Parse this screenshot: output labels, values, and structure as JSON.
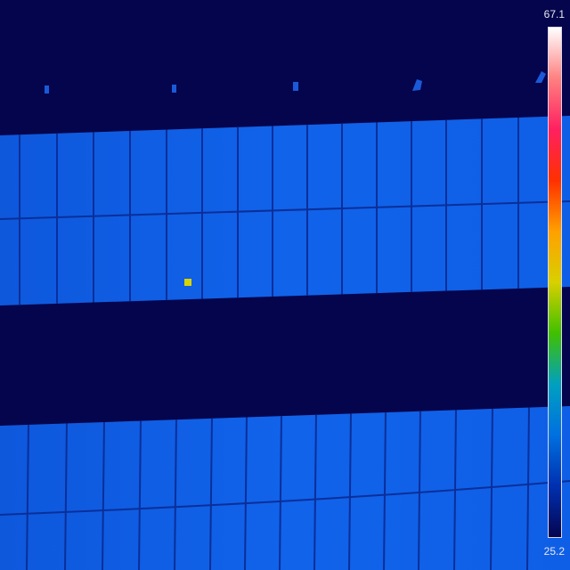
{
  "thermal": {
    "max_label": "67.1",
    "min_label": "25.2",
    "max_value": 67.1,
    "min_value": 25.2,
    "hotspot_value": 52.0,
    "palette": [
      "#ffffff",
      "#ff8080",
      "#ff2060",
      "#ff3000",
      "#ffa000",
      "#d8d000",
      "#40c000",
      "#00a0c0",
      "#0070e0",
      "#0030b0",
      "#050550"
    ],
    "background_color": "#05054d",
    "panel_color": "#0f5fe4",
    "cell_line_color": "#0a2f9a"
  }
}
